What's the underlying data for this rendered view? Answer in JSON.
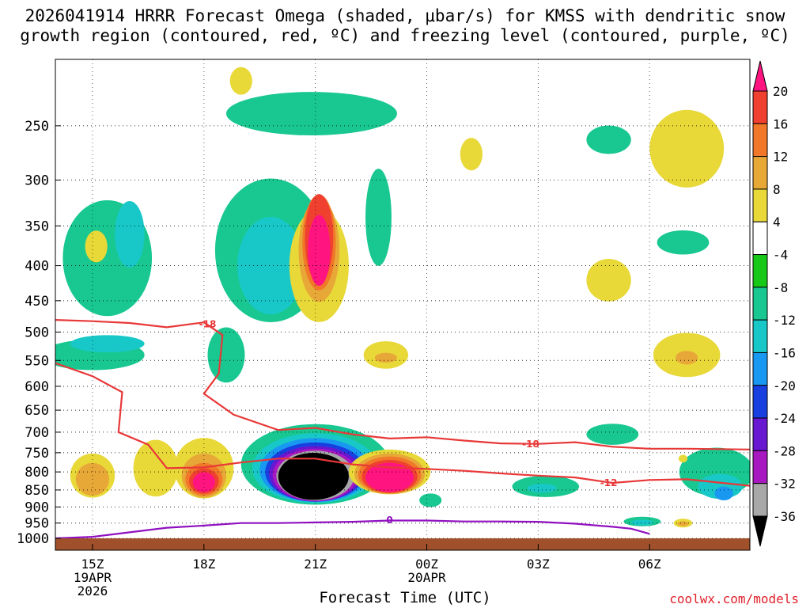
{
  "title": {
    "line1": "2026041914 HRRR Forecast Omega (shaded, μbar/s) for KMSS with dendritic snow",
    "line2": "growth region (contoured, red, ºC) and freezing level (contoured, purple, ºC)"
  },
  "credit": "coolwx.com/models",
  "chart_data": {
    "type": "heatmap",
    "xlabel": "Forecast Time (UTC)",
    "ylabel": "",
    "x_axis": {
      "hours_range": [
        -1,
        17.7
      ],
      "ticks": [
        {
          "hour": 0,
          "label": "15Z",
          "sub": [
            "19APR",
            "2026"
          ]
        },
        {
          "hour": 3,
          "label": "18Z",
          "sub": []
        },
        {
          "hour": 6,
          "label": "21Z",
          "sub": []
        },
        {
          "hour": 9,
          "label": "00Z",
          "sub": [
            "20APR"
          ]
        },
        {
          "hour": 12,
          "label": "03Z",
          "sub": []
        },
        {
          "hour": 15,
          "label": "06Z",
          "sub": []
        }
      ]
    },
    "y_axis": {
      "scale": "log-pressure",
      "range_hpa": [
        1000,
        200
      ],
      "ticks": [
        250,
        300,
        350,
        400,
        450,
        500,
        550,
        600,
        650,
        700,
        750,
        800,
        850,
        900,
        950,
        1000
      ]
    },
    "colorbar": {
      "labels": [
        "20",
        "16",
        "12",
        "8",
        "4",
        "-4",
        "-8",
        "-12",
        "-16",
        "-20",
        "-24",
        "-28",
        "-32",
        "-36"
      ],
      "colors": [
        "#ff1480",
        "#f04030",
        "#f07828",
        "#e8a838",
        "#e8d838",
        "#ffffff",
        "#18c818",
        "#18c890",
        "#18c8c8",
        "#1898f0",
        "#1840e0",
        "#6818d0",
        "#a818c0",
        "#a8a8a8",
        "#000000"
      ]
    },
    "omega_regions": [
      {
        "value": -10,
        "t": 0.4,
        "p": 390,
        "dt": 1.2,
        "dp": 150
      },
      {
        "value": -10,
        "t": 0.0,
        "p": 540,
        "dt": 1.4,
        "dp": 55
      },
      {
        "value": -10,
        "t": 4.8,
        "p": 380,
        "dt": 1.5,
        "dp": 180
      },
      {
        "value": -10,
        "t": 5.9,
        "p": 240,
        "dt": 2.3,
        "dp": 35
      },
      {
        "value": -10,
        "t": 7.7,
        "p": 340,
        "dt": 0.35,
        "dp": 110
      },
      {
        "value": -10,
        "t": 3.6,
        "p": 540,
        "dt": 0.5,
        "dp": 100
      },
      {
        "value": -14,
        "t": 1.0,
        "p": 360,
        "dt": 0.4,
        "dp": 80
      },
      {
        "value": -14,
        "t": 0.4,
        "p": 520,
        "dt": 1.0,
        "dp": 30
      },
      {
        "value": -14,
        "t": 4.8,
        "p": 400,
        "dt": 0.9,
        "dp": 130
      },
      {
        "value": -10,
        "t": 6.0,
        "p": 780,
        "dt": 2.0,
        "dp": 210
      },
      {
        "value": -14,
        "t": 6.0,
        "p": 790,
        "dt": 1.7,
        "dp": 185
      },
      {
        "value": -18,
        "t": 6.0,
        "p": 795,
        "dt": 1.5,
        "dp": 170
      },
      {
        "value": -22,
        "t": 6.0,
        "p": 800,
        "dt": 1.35,
        "dp": 158
      },
      {
        "value": -26,
        "t": 6.0,
        "p": 805,
        "dt": 1.25,
        "dp": 150
      },
      {
        "value": -30,
        "t": 6.0,
        "p": 808,
        "dt": 1.15,
        "dp": 142
      },
      {
        "value": -34,
        "t": 6.0,
        "p": 810,
        "dt": 1.05,
        "dp": 135
      },
      {
        "value": -40,
        "t": 5.95,
        "p": 812,
        "dt": 0.95,
        "dp": 128
      },
      {
        "value": -10,
        "t": 12.2,
        "p": 840,
        "dt": 0.9,
        "dp": 60
      },
      {
        "value": -14,
        "t": 12.1,
        "p": 845,
        "dt": 0.4,
        "dp": 25
      },
      {
        "value": -10,
        "t": 9.1,
        "p": 880,
        "dt": 0.3,
        "dp": 40
      },
      {
        "value": -10,
        "t": 14.0,
        "p": 705,
        "dt": 0.7,
        "dp": 50
      },
      {
        "value": -10,
        "t": 14.8,
        "p": 945,
        "dt": 0.5,
        "dp": 30
      },
      {
        "value": -14,
        "t": 14.8,
        "p": 948,
        "dt": 0.3,
        "dp": 18
      },
      {
        "value": -10,
        "t": 16.8,
        "p": 800,
        "dt": 1.0,
        "dp": 130
      },
      {
        "value": -14,
        "t": 16.9,
        "p": 840,
        "dt": 0.6,
        "dp": 70
      },
      {
        "value": -18,
        "t": 17.0,
        "p": 860,
        "dt": 0.25,
        "dp": 40
      },
      {
        "value": -10,
        "t": 13.9,
        "p": 262,
        "dt": 0.6,
        "dp": 25
      },
      {
        "value": -10,
        "t": 15.9,
        "p": 370,
        "dt": 0.7,
        "dp": 30
      },
      {
        "value": 6,
        "t": 6.1,
        "p": 400,
        "dt": 0.8,
        "dp": 150
      },
      {
        "value": 10,
        "t": 6.1,
        "p": 380,
        "dt": 0.55,
        "dp": 130
      },
      {
        "value": 14,
        "t": 6.1,
        "p": 370,
        "dt": 0.45,
        "dp": 118
      },
      {
        "value": 18,
        "t": 6.1,
        "p": 365,
        "dt": 0.38,
        "dp": 108
      },
      {
        "value": 22,
        "t": 6.1,
        "p": 380,
        "dt": 0.3,
        "dp": 90
      },
      {
        "value": 6,
        "t": 1.7,
        "p": 790,
        "dt": 0.6,
        "dp": 150
      },
      {
        "value": 6,
        "t": 0.0,
        "p": 810,
        "dt": 0.6,
        "dp": 120
      },
      {
        "value": 10,
        "t": 0.0,
        "p": 820,
        "dt": 0.45,
        "dp": 90
      },
      {
        "value": 6,
        "t": 3.0,
        "p": 790,
        "dt": 0.8,
        "dp": 160
      },
      {
        "value": 10,
        "t": 3.0,
        "p": 810,
        "dt": 0.6,
        "dp": 120
      },
      {
        "value": 14,
        "t": 3.0,
        "p": 820,
        "dt": 0.5,
        "dp": 90
      },
      {
        "value": 18,
        "t": 3.0,
        "p": 825,
        "dt": 0.4,
        "dp": 70
      },
      {
        "value": 22,
        "t": 3.0,
        "p": 828,
        "dt": 0.3,
        "dp": 55
      },
      {
        "value": 6,
        "t": 8.0,
        "p": 800,
        "dt": 1.1,
        "dp": 120
      },
      {
        "value": 10,
        "t": 8.0,
        "p": 805,
        "dt": 0.95,
        "dp": 110
      },
      {
        "value": 14,
        "t": 8.0,
        "p": 808,
        "dt": 0.85,
        "dp": 100
      },
      {
        "value": 18,
        "t": 8.0,
        "p": 812,
        "dt": 0.75,
        "dp": 90
      },
      {
        "value": 22,
        "t": 8.0,
        "p": 815,
        "dt": 0.65,
        "dp": 80
      },
      {
        "value": 6,
        "t": 7.9,
        "p": 540,
        "dt": 0.6,
        "dp": 50
      },
      {
        "value": 10,
        "t": 7.9,
        "p": 545,
        "dt": 0.3,
        "dp": 18
      },
      {
        "value": 6,
        "t": 16.0,
        "p": 270,
        "dt": 1.0,
        "dp": 70
      },
      {
        "value": 6,
        "t": 16.0,
        "p": 540,
        "dt": 0.9,
        "dp": 80
      },
      {
        "value": 10,
        "t": 16.0,
        "p": 545,
        "dt": 0.3,
        "dp": 25
      },
      {
        "value": 6,
        "t": 13.9,
        "p": 420,
        "dt": 0.6,
        "dp": 60
      },
      {
        "value": 6,
        "t": 0.1,
        "p": 375,
        "dt": 0.3,
        "dp": 40
      },
      {
        "value": 6,
        "t": 10.2,
        "p": 275,
        "dt": 0.3,
        "dp": 30
      },
      {
        "value": 6,
        "t": 4.0,
        "p": 215,
        "dt": 0.3,
        "dp": 20
      },
      {
        "value": 6,
        "t": 15.9,
        "p": 950,
        "dt": 0.25,
        "dp": 28
      },
      {
        "value": 10,
        "t": 15.9,
        "p": 952,
        "dt": 0.15,
        "dp": 15
      },
      {
        "value": 6,
        "t": 15.9,
        "p": 765,
        "dt": 0.12,
        "dp": 20
      }
    ],
    "contours": [
      {
        "name": "dendritic -18 (upper)",
        "color": "#e83838",
        "points": [
          [
            -1,
            480
          ],
          [
            0,
            482
          ],
          [
            1,
            485
          ],
          [
            2,
            492
          ],
          [
            3,
            484
          ],
          [
            3.5,
            505
          ],
          [
            3.4,
            575
          ],
          [
            3.0,
            615
          ],
          [
            3.8,
            660
          ],
          [
            5.0,
            695
          ],
          [
            6.0,
            690
          ],
          [
            7.0,
            705
          ],
          [
            8.0,
            715
          ],
          [
            9.0,
            712
          ],
          [
            10.0,
            720
          ],
          [
            11.0,
            727
          ],
          [
            12.0,
            728
          ],
          [
            13.0,
            724
          ],
          [
            14.0,
            735
          ],
          [
            15.0,
            740
          ],
          [
            16.0,
            740
          ],
          [
            17.7,
            742
          ]
        ],
        "labels": [
          {
            "t": 3.1,
            "p": 487,
            "text": "-18"
          },
          {
            "t": 11.8,
            "p": 729,
            "text": "-18"
          }
        ]
      },
      {
        "name": "dendritic -12 (lower)",
        "color": "#e83838",
        "points": [
          [
            -1,
            555
          ],
          [
            0,
            580
          ],
          [
            0.8,
            612
          ],
          [
            0.7,
            700
          ],
          [
            1.5,
            730
          ],
          [
            2.0,
            790
          ],
          [
            3.0,
            788
          ],
          [
            4.0,
            775
          ],
          [
            5.0,
            765
          ],
          [
            6.0,
            765
          ],
          [
            7.0,
            780
          ],
          [
            8.0,
            788
          ],
          [
            9.0,
            792
          ],
          [
            10.0,
            797
          ],
          [
            11.0,
            804
          ],
          [
            12.0,
            810
          ],
          [
            13.0,
            815
          ],
          [
            14.0,
            830
          ],
          [
            15.0,
            822
          ],
          [
            16.0,
            820
          ],
          [
            17.7,
            838
          ]
        ],
        "labels": [
          {
            "t": 13.9,
            "p": 830,
            "text": "-12"
          }
        ]
      },
      {
        "name": "freezing level 0",
        "color": "#9010c0",
        "points": [
          [
            -1,
            1000
          ],
          [
            0,
            995
          ],
          [
            1,
            980
          ],
          [
            2,
            965
          ],
          [
            3,
            958
          ],
          [
            4,
            950
          ],
          [
            5,
            950
          ],
          [
            6,
            948
          ],
          [
            7,
            946
          ],
          [
            8,
            942
          ],
          [
            9,
            942
          ],
          [
            10,
            945
          ],
          [
            11,
            945
          ],
          [
            12,
            946
          ],
          [
            13,
            952
          ],
          [
            14,
            962
          ],
          [
            14.5,
            968
          ],
          [
            15.0,
            985
          ]
        ],
        "labels": [
          {
            "t": 8.0,
            "p": 941,
            "text": "0"
          }
        ]
      }
    ]
  }
}
